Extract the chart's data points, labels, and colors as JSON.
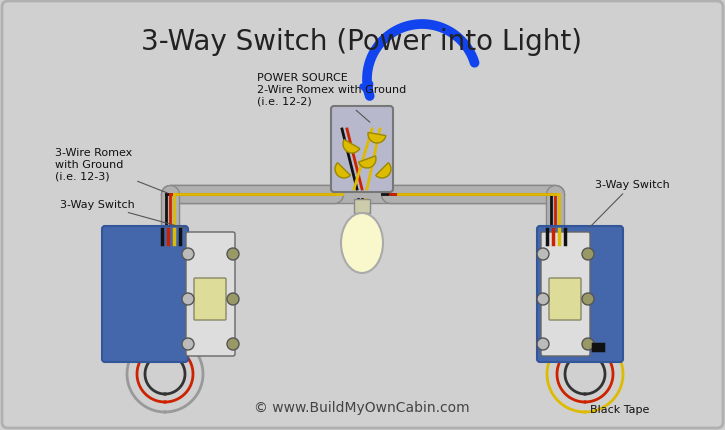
{
  "title": "3-Way Switch (Power into Light)",
  "bg_color": "#d0d0d0",
  "title_fontsize": 20,
  "title_color": "#222222",
  "copyright": "© www.BuildMyOwnCabin.com",
  "copyright_fontsize": 10,
  "labels": {
    "power_source": "POWER SOURCE\n2-Wire Romex with Ground\n(i.e. 12-2)",
    "three_wire": "3-Wire Romex\nwith Ground\n(i.e. 12-3)",
    "switch_left": "3-Way Switch",
    "switch_right": "3-Way Switch",
    "black_tape": "Black Tape"
  },
  "wire_colors": {
    "black": "#111111",
    "white": "#e8e8e8",
    "red": "#cc2200",
    "yellow": "#ddbb00",
    "gray": "#999999",
    "blue": "#1144ee"
  }
}
